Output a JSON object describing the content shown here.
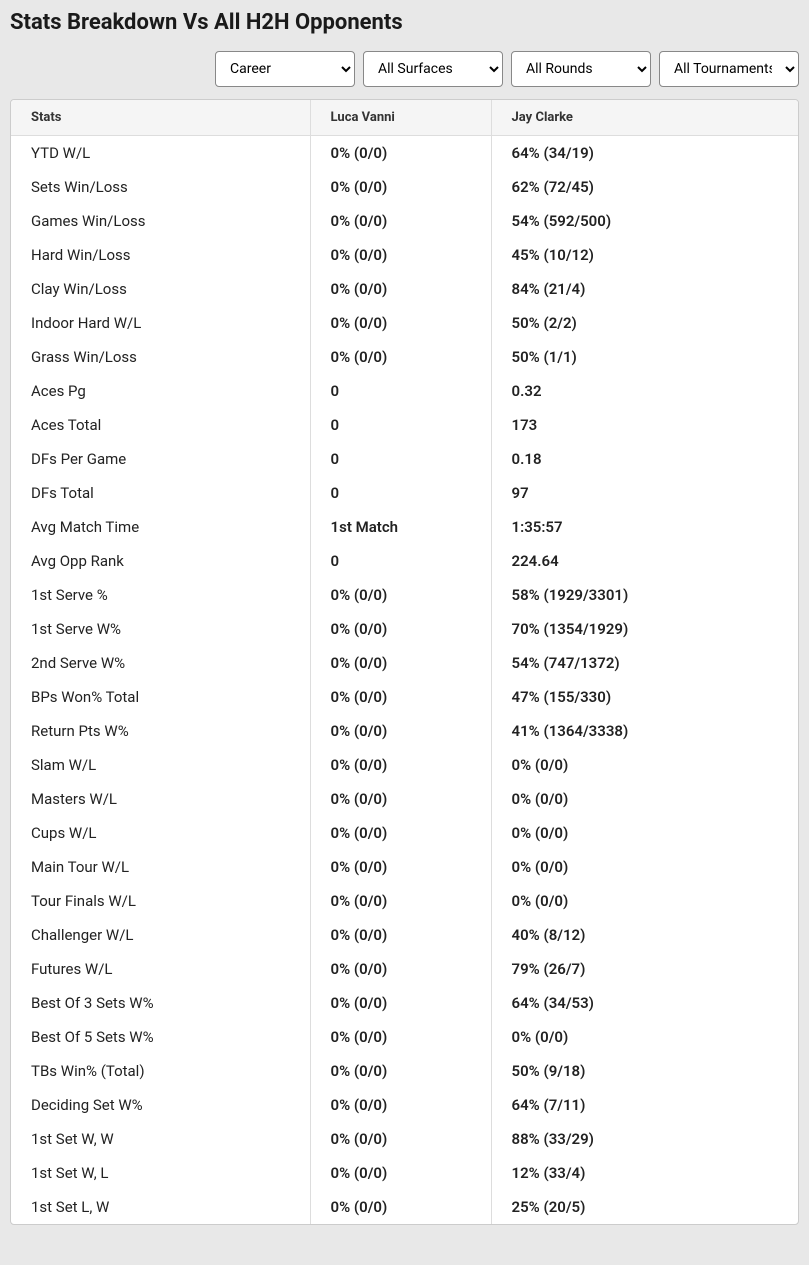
{
  "title": "Stats Breakdown Vs All H2H Opponents",
  "filters": {
    "career": "Career",
    "surface": "All Surfaces",
    "round": "All Rounds",
    "tournament": "All Tournaments"
  },
  "columns": {
    "stats": "Stats",
    "player1": "Luca Vanni",
    "player2": "Jay Clarke"
  },
  "rows": [
    {
      "stat": "YTD W/L",
      "p1": "0% (0/0)",
      "p2": "64% (34/19)"
    },
    {
      "stat": "Sets Win/Loss",
      "p1": "0% (0/0)",
      "p2": "62% (72/45)"
    },
    {
      "stat": "Games Win/Loss",
      "p1": "0% (0/0)",
      "p2": "54% (592/500)"
    },
    {
      "stat": "Hard Win/Loss",
      "p1": "0% (0/0)",
      "p2": "45% (10/12)"
    },
    {
      "stat": "Clay Win/Loss",
      "p1": "0% (0/0)",
      "p2": "84% (21/4)"
    },
    {
      "stat": "Indoor Hard W/L",
      "p1": "0% (0/0)",
      "p2": "50% (2/2)"
    },
    {
      "stat": "Grass Win/Loss",
      "p1": "0% (0/0)",
      "p2": "50% (1/1)"
    },
    {
      "stat": "Aces Pg",
      "p1": "0",
      "p2": "0.32"
    },
    {
      "stat": "Aces Total",
      "p1": "0",
      "p2": "173"
    },
    {
      "stat": "DFs Per Game",
      "p1": "0",
      "p2": "0.18"
    },
    {
      "stat": "DFs Total",
      "p1": "0",
      "p2": "97"
    },
    {
      "stat": "Avg Match Time",
      "p1": "1st Match",
      "p2": "1:35:57"
    },
    {
      "stat": "Avg Opp Rank",
      "p1": "0",
      "p2": "224.64"
    },
    {
      "stat": "1st Serve %",
      "p1": "0% (0/0)",
      "p2": "58% (1929/3301)"
    },
    {
      "stat": "1st Serve W%",
      "p1": "0% (0/0)",
      "p2": "70% (1354/1929)"
    },
    {
      "stat": "2nd Serve W%",
      "p1": "0% (0/0)",
      "p2": "54% (747/1372)"
    },
    {
      "stat": "BPs Won% Total",
      "p1": "0% (0/0)",
      "p2": "47% (155/330)"
    },
    {
      "stat": "Return Pts W%",
      "p1": "0% (0/0)",
      "p2": "41% (1364/3338)"
    },
    {
      "stat": "Slam W/L",
      "p1": "0% (0/0)",
      "p2": "0% (0/0)"
    },
    {
      "stat": "Masters W/L",
      "p1": "0% (0/0)",
      "p2": "0% (0/0)"
    },
    {
      "stat": "Cups W/L",
      "p1": "0% (0/0)",
      "p2": "0% (0/0)"
    },
    {
      "stat": "Main Tour W/L",
      "p1": "0% (0/0)",
      "p2": "0% (0/0)"
    },
    {
      "stat": "Tour Finals W/L",
      "p1": "0% (0/0)",
      "p2": "0% (0/0)"
    },
    {
      "stat": "Challenger W/L",
      "p1": "0% (0/0)",
      "p2": "40% (8/12)"
    },
    {
      "stat": "Futures W/L",
      "p1": "0% (0/0)",
      "p2": "79% (26/7)"
    },
    {
      "stat": "Best Of 3 Sets W%",
      "p1": "0% (0/0)",
      "p2": "64% (34/53)"
    },
    {
      "stat": "Best Of 5 Sets W%",
      "p1": "0% (0/0)",
      "p2": "0% (0/0)"
    },
    {
      "stat": "TBs Win% (Total)",
      "p1": "0% (0/0)",
      "p2": "50% (9/18)"
    },
    {
      "stat": "Deciding Set W%",
      "p1": "0% (0/0)",
      "p2": "64% (7/11)"
    },
    {
      "stat": "1st Set W, W",
      "p1": "0% (0/0)",
      "p2": "88% (33/29)"
    },
    {
      "stat": "1st Set W, L",
      "p1": "0% (0/0)",
      "p2": "12% (33/4)"
    },
    {
      "stat": "1st Set L, W",
      "p1": "0% (0/0)",
      "p2": "25% (20/5)"
    }
  ]
}
